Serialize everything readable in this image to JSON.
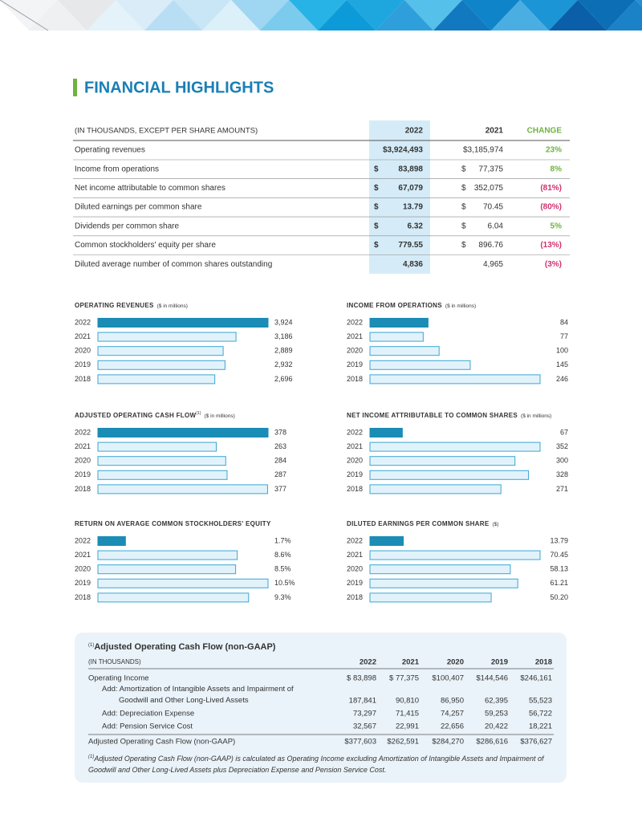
{
  "header": {
    "title": "FINANCIAL HIGHLIGHTS"
  },
  "highlights": {
    "columns": [
      "(IN THOUSANDS, EXCEPT PER SHARE AMOUNTS)",
      "2022",
      "2021",
      "CHANGE"
    ],
    "rows": [
      {
        "label": "Operating revenues",
        "v2022": "$3,924,493",
        "v2021": "$3,185,974",
        "change": "23%"
      },
      {
        "label": "Income from operations",
        "cur2022": "$",
        "v2022": "83,898",
        "cur2021": "$",
        "v2021": "77,375",
        "change": "8%"
      },
      {
        "label": "Net income attributable to common shares",
        "cur2022": "$",
        "v2022": "67,079",
        "cur2021": "$",
        "v2021": "352,075",
        "change": "(81%)"
      },
      {
        "label": "Diluted earnings per common share",
        "cur2022": "$",
        "v2022": "13.79",
        "cur2021": "$",
        "v2021": "70.45",
        "change": "(80%)"
      },
      {
        "label": "Dividends per common share",
        "cur2022": "$",
        "v2022": "6.32",
        "cur2021": "$",
        "v2021": "6.04",
        "change": "5%"
      },
      {
        "label": "Common stockholders' equity per share",
        "cur2022": "$",
        "v2022": "779.55",
        "cur2021": "$",
        "v2021": "896.76",
        "change": "(13%)"
      },
      {
        "label": "Diluted average number of common shares outstanding",
        "v2022": "4,836",
        "v2021": "4,965",
        "change": "(3%)"
      }
    ]
  },
  "bar_colors": {
    "highlight": "#1a8cb5",
    "fill": "#e2f2fb",
    "stroke": "#3ba6d3"
  },
  "charts": [
    {
      "type": "bar",
      "title": "OPERATING REVENUES",
      "unit": "($ in millions)",
      "categories": [
        "2022",
        "2021",
        "2020",
        "2019",
        "2018"
      ],
      "values": [
        3924,
        3186,
        2889,
        2932,
        2696
      ],
      "value_labels": [
        "3,924",
        "3,186",
        "2,889",
        "2,932",
        "2,696"
      ]
    },
    {
      "type": "bar",
      "title": "INCOME FROM OPERATIONS",
      "unit": "($ in millions)",
      "categories": [
        "2022",
        "2021",
        "2020",
        "2019",
        "2018"
      ],
      "values": [
        84,
        77,
        100,
        145,
        246
      ]
    },
    {
      "type": "bar",
      "title": "ADJUSTED OPERATING CASH FLOW",
      "note_mark": "(1)",
      "unit": "($ in millions)",
      "categories": [
        "2022",
        "2021",
        "2020",
        "2019",
        "2018"
      ],
      "values": [
        378,
        263,
        284,
        287,
        377
      ]
    },
    {
      "type": "bar",
      "title": "NET INCOME ATTRIBUTABLE TO COMMON SHARES",
      "unit": "($ in millions)",
      "categories": [
        "2022",
        "2021",
        "2020",
        "2019",
        "2018"
      ],
      "values": [
        67,
        352,
        300,
        328,
        271
      ]
    },
    {
      "type": "bar",
      "title": "RETURN ON AVERAGE COMMON STOCKHOLDERS' EQUITY",
      "categories": [
        "2022",
        "2021",
        "2020",
        "2019",
        "2018"
      ],
      "values": [
        1.7,
        8.6,
        8.5,
        10.5,
        9.3
      ],
      "value_labels": [
        "1.7%",
        "8.6%",
        "8.5%",
        "10.5%",
        "9.3%"
      ]
    },
    {
      "type": "bar",
      "title": "DILUTED EARNINGS PER COMMON SHARE",
      "unit": "($)",
      "categories": [
        "2022",
        "2021",
        "2020",
        "2019",
        "2018"
      ],
      "values": [
        13.79,
        70.45,
        58.13,
        61.21,
        50.2
      ],
      "value_labels": [
        "13.79",
        "70.45",
        "58.13",
        "61.21",
        "50.20"
      ]
    }
  ],
  "adjusted": {
    "note_mark": "(1)",
    "title": "Adjusted Operating Cash Flow (non-GAAP)",
    "unit": "(IN THOUSANDS)",
    "years": [
      "2022",
      "2021",
      "2020",
      "2019",
      "2018"
    ],
    "rows": [
      {
        "label": "Operating Income",
        "values": [
          "$ 83,898",
          "$ 77,375",
          "$100,407",
          "$144,546",
          "$246,161"
        ]
      },
      {
        "label": "Add: Amortization of Intangible Assets and Impairment of Goodwill and Other Long-Lived Assets",
        "values": [
          "187,841",
          "90,810",
          "86,950",
          "62,395",
          "55,523"
        ]
      },
      {
        "label": "Add: Depreciation Expense",
        "values": [
          "73,297",
          "71,415",
          "74,257",
          "59,253",
          "56,722"
        ]
      },
      {
        "label": "Add: Pension Service Cost",
        "values": [
          "32,567",
          "22,991",
          "22,656",
          "20,422",
          "18,221"
        ]
      },
      {
        "label": "Adjusted Operating Cash Flow (non-GAAP)",
        "values": [
          "$377,603",
          "$262,591",
          "$284,270",
          "$286,616",
          "$376,627"
        ]
      }
    ],
    "footnote": "Adjusted Operating Cash Flow (non-GAAP) is calculated as Operating Income excluding Amortization of Intangible Assets and Impairment of Goodwill and Other Long-Lived Assets plus Depreciation Expense and Pension Service Cost."
  }
}
